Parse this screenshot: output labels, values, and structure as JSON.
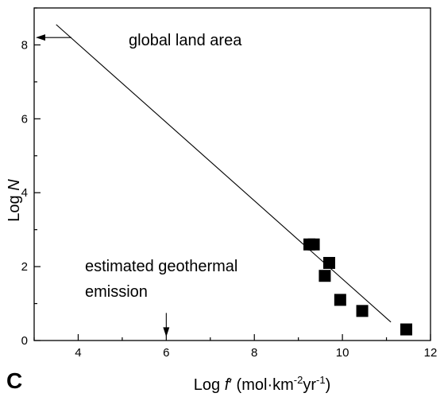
{
  "panel_label": "C",
  "chart_data": {
    "type": "scatter",
    "x_axis": {
      "label_prefix": "Log ",
      "label_var": "f",
      "label_units": "′ (mol·km",
      "label_exp1": "-2",
      "label_mid": "yr",
      "label_exp2": "-1",
      "label_end": ")",
      "range": [
        3,
        12
      ],
      "ticks": [
        4,
        6,
        8,
        10,
        12
      ]
    },
    "y_axis": {
      "label_prefix": "Log ",
      "label_var": "N",
      "range": [
        0,
        9
      ],
      "ticks": [
        0,
        2,
        4,
        6,
        8
      ]
    },
    "points": [
      {
        "x": 9.25,
        "y": 2.6
      },
      {
        "x": 9.35,
        "y": 2.6
      },
      {
        "x": 9.7,
        "y": 2.1
      },
      {
        "x": 9.6,
        "y": 1.75
      },
      {
        "x": 9.95,
        "y": 1.1
      },
      {
        "x": 10.45,
        "y": 0.8
      },
      {
        "x": 11.45,
        "y": 0.3
      }
    ],
    "fit_line": {
      "x": [
        3.5,
        11.1
      ],
      "y": [
        8.55,
        0.5
      ]
    },
    "annotations": [
      {
        "text": "global land area",
        "arrow": "left",
        "target": {
          "x": 3.0,
          "y": 8.2
        }
      },
      {
        "text_line1": "estimated geothermal",
        "text_line2": "emission",
        "arrow": "down",
        "target": {
          "x": 6.0,
          "y": 0.1
        }
      }
    ],
    "grid": false
  }
}
